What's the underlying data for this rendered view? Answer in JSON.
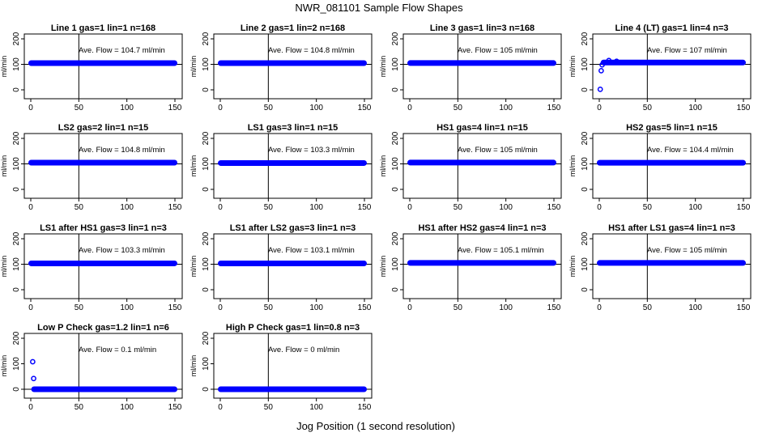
{
  "figure": {
    "title": "NWR_081101  Sample Flow Shapes",
    "xlabel": "Jog Position (1 second resolution)"
  },
  "chart_data": [
    {
      "type": "scatter",
      "title": "Line 1 gas=1 lin=1 n=168",
      "ylabel": "ml/min",
      "annotation": "Ave. Flow =  104.7  ml/min",
      "xlim": [
        0,
        150
      ],
      "ylim": [
        0,
        200
      ],
      "xticks": [
        "0",
        "50",
        "100",
        "150"
      ],
      "yticks": [
        "0",
        "100",
        "200"
      ],
      "reference_line_x": 50,
      "reference_line_y": 100,
      "series": [
        {
          "x": [
            0,
            150
          ],
          "y": [
            104.7,
            104.7
          ]
        }
      ],
      "outliers": []
    },
    {
      "type": "scatter",
      "title": "Line 2 gas=1 lin=2 n=168",
      "ylabel": "ml/min",
      "annotation": "Ave. Flow =  104.8  ml/min",
      "xlim": [
        0,
        150
      ],
      "ylim": [
        0,
        200
      ],
      "xticks": [
        "0",
        "50",
        "100",
        "150"
      ],
      "yticks": [
        "0",
        "100",
        "200"
      ],
      "reference_line_x": 50,
      "reference_line_y": 100,
      "series": [
        {
          "x": [
            0,
            150
          ],
          "y": [
            104.8,
            104.8
          ]
        }
      ],
      "outliers": []
    },
    {
      "type": "scatter",
      "title": "Line 3 gas=1 lin=3 n=168",
      "ylabel": "ml/min",
      "annotation": "Ave. Flow =  105  ml/min",
      "xlim": [
        0,
        150
      ],
      "ylim": [
        0,
        200
      ],
      "xticks": [
        "0",
        "50",
        "100",
        "150"
      ],
      "yticks": [
        "0",
        "100",
        "200"
      ],
      "reference_line_x": 50,
      "reference_line_y": 100,
      "series": [
        {
          "x": [
            0,
            150
          ],
          "y": [
            105,
            105
          ]
        }
      ],
      "outliers": []
    },
    {
      "type": "scatter",
      "title": "Line 4 (LT) gas=1 lin=4 n=3",
      "ylabel": "ml/min",
      "annotation": "Ave. Flow =  107  ml/min",
      "xlim": [
        0,
        150
      ],
      "ylim": [
        0,
        200
      ],
      "xticks": [
        "0",
        "50",
        "100",
        "150"
      ],
      "yticks": [
        "0",
        "100",
        "200"
      ],
      "reference_line_x": 50,
      "reference_line_y": 100,
      "series": [
        {
          "x": [
            4,
            150
          ],
          "y": [
            107,
            107
          ]
        }
      ],
      "outliers": [
        {
          "x": 1,
          "y": 2
        },
        {
          "x": 2,
          "y": 75
        },
        {
          "x": 3,
          "y": 98
        },
        {
          "x": 10,
          "y": 115
        },
        {
          "x": 18,
          "y": 112
        }
      ]
    },
    {
      "type": "scatter",
      "title": "LS2 gas=2 lin=1 n=15",
      "ylabel": "ml/min",
      "annotation": "Ave. Flow =  104.8  ml/min",
      "xlim": [
        0,
        150
      ],
      "ylim": [
        0,
        200
      ],
      "xticks": [
        "0",
        "50",
        "100",
        "150"
      ],
      "yticks": [
        "0",
        "100",
        "200"
      ],
      "reference_line_x": 50,
      "reference_line_y": 100,
      "series": [
        {
          "x": [
            0,
            150
          ],
          "y": [
            104.8,
            104.8
          ]
        }
      ],
      "outliers": []
    },
    {
      "type": "scatter",
      "title": "LS1 gas=3 lin=1 n=15",
      "ylabel": "ml/min",
      "annotation": "Ave. Flow =  103.3  ml/min",
      "xlim": [
        0,
        150
      ],
      "ylim": [
        0,
        200
      ],
      "xticks": [
        "0",
        "50",
        "100",
        "150"
      ],
      "yticks": [
        "0",
        "100",
        "200"
      ],
      "reference_line_x": 50,
      "reference_line_y": 100,
      "series": [
        {
          "x": [
            0,
            150
          ],
          "y": [
            103.3,
            103.3
          ]
        }
      ],
      "outliers": []
    },
    {
      "type": "scatter",
      "title": "HS1 gas=4 lin=1 n=15",
      "ylabel": "ml/min",
      "annotation": "Ave. Flow =  105  ml/min",
      "xlim": [
        0,
        150
      ],
      "ylim": [
        0,
        200
      ],
      "xticks": [
        "0",
        "50",
        "100",
        "150"
      ],
      "yticks": [
        "0",
        "100",
        "200"
      ],
      "reference_line_x": 50,
      "reference_line_y": 100,
      "series": [
        {
          "x": [
            0,
            150
          ],
          "y": [
            105,
            105
          ]
        }
      ],
      "outliers": []
    },
    {
      "type": "scatter",
      "title": "HS2 gas=5 lin=1 n=15",
      "ylabel": "ml/min",
      "annotation": "Ave. Flow =  104.4  ml/min",
      "xlim": [
        0,
        150
      ],
      "ylim": [
        0,
        200
      ],
      "xticks": [
        "0",
        "50",
        "100",
        "150"
      ],
      "yticks": [
        "0",
        "100",
        "200"
      ],
      "reference_line_x": 50,
      "reference_line_y": 100,
      "series": [
        {
          "x": [
            0,
            150
          ],
          "y": [
            104.4,
            104.4
          ]
        }
      ],
      "outliers": []
    },
    {
      "type": "scatter",
      "title": "LS1 after HS1 gas=3 lin=1 n=3",
      "ylabel": "ml/min",
      "annotation": "Ave. Flow =  103.3  ml/min",
      "xlim": [
        0,
        150
      ],
      "ylim": [
        0,
        200
      ],
      "xticks": [
        "0",
        "50",
        "100",
        "150"
      ],
      "yticks": [
        "0",
        "100",
        "200"
      ],
      "reference_line_x": 50,
      "reference_line_y": 100,
      "series": [
        {
          "x": [
            0,
            150
          ],
          "y": [
            103.3,
            103.3
          ]
        }
      ],
      "outliers": []
    },
    {
      "type": "scatter",
      "title": "LS1 after LS2 gas=3 lin=1 n=3",
      "ylabel": "ml/min",
      "annotation": "Ave. Flow =  103.1  ml/min",
      "xlim": [
        0,
        150
      ],
      "ylim": [
        0,
        200
      ],
      "xticks": [
        "0",
        "50",
        "100",
        "150"
      ],
      "yticks": [
        "0",
        "100",
        "200"
      ],
      "reference_line_x": 50,
      "reference_line_y": 100,
      "series": [
        {
          "x": [
            0,
            150
          ],
          "y": [
            103.1,
            103.1
          ]
        }
      ],
      "outliers": []
    },
    {
      "type": "scatter",
      "title": "HS1 after HS2 gas=4 lin=1 n=3",
      "ylabel": "ml/min",
      "annotation": "Ave. Flow =  105.1  ml/min",
      "xlim": [
        0,
        150
      ],
      "ylim": [
        0,
        200
      ],
      "xticks": [
        "0",
        "50",
        "100",
        "150"
      ],
      "yticks": [
        "0",
        "100",
        "200"
      ],
      "reference_line_x": 50,
      "reference_line_y": 100,
      "series": [
        {
          "x": [
            0,
            150
          ],
          "y": [
            105.1,
            105.1
          ]
        }
      ],
      "outliers": []
    },
    {
      "type": "scatter",
      "title": "HS1 after LS1 gas=4 lin=1 n=3",
      "ylabel": "ml/min",
      "annotation": "Ave. Flow =  105  ml/min",
      "xlim": [
        0,
        150
      ],
      "ylim": [
        0,
        200
      ],
      "xticks": [
        "0",
        "50",
        "100",
        "150"
      ],
      "yticks": [
        "0",
        "100",
        "200"
      ],
      "reference_line_x": 50,
      "reference_line_y": 100,
      "series": [
        {
          "x": [
            0,
            150
          ],
          "y": [
            105,
            105
          ]
        }
      ],
      "outliers": []
    },
    {
      "type": "scatter",
      "title": "Low P Check gas=1.2 lin=1 n=6",
      "ylabel": "ml/min",
      "annotation": "Ave. Flow =  0.1  ml/min",
      "xlim": [
        0,
        150
      ],
      "ylim": [
        0,
        200
      ],
      "xticks": [
        "0",
        "50",
        "100",
        "150"
      ],
      "yticks": [
        "0",
        "100",
        "200"
      ],
      "reference_line_x": 50,
      "reference_line_y": 0,
      "series": [
        {
          "x": [
            3,
            150
          ],
          "y": [
            0.1,
            0.1
          ]
        }
      ],
      "outliers": [
        {
          "x": 2,
          "y": 108
        },
        {
          "x": 3,
          "y": 42
        }
      ]
    },
    {
      "type": "scatter",
      "title": "High P Check gas=1 lin=0.8 n=3",
      "ylabel": "ml/min",
      "annotation": "Ave. Flow =  0  ml/min",
      "xlim": [
        0,
        150
      ],
      "ylim": [
        0,
        200
      ],
      "xticks": [
        "0",
        "50",
        "100",
        "150"
      ],
      "yticks": [
        "0",
        "100",
        "200"
      ],
      "reference_line_x": 50,
      "reference_line_y": 0,
      "series": [
        {
          "x": [
            0,
            150
          ],
          "y": [
            0,
            0
          ]
        }
      ],
      "outliers": []
    }
  ]
}
